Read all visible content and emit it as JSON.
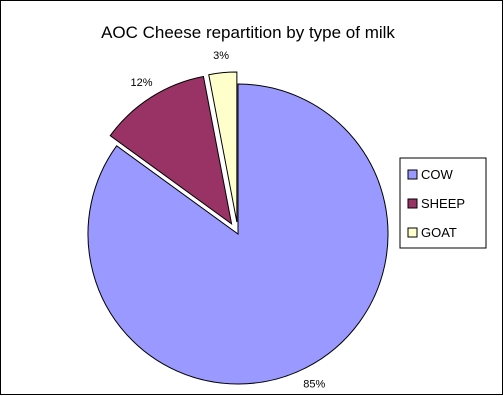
{
  "chart_data": {
    "type": "pie",
    "title": "AOC Cheese repartition by type of milk",
    "categories": [
      "COW",
      "SHEEP",
      "GOAT"
    ],
    "values": [
      85,
      12,
      3
    ],
    "labels": [
      "85%",
      "12%",
      "3%"
    ],
    "colors": [
      "#9999ff",
      "#993366",
      "#ffffcc"
    ],
    "exploded": [
      false,
      true,
      true
    ],
    "legend_position": "right"
  }
}
